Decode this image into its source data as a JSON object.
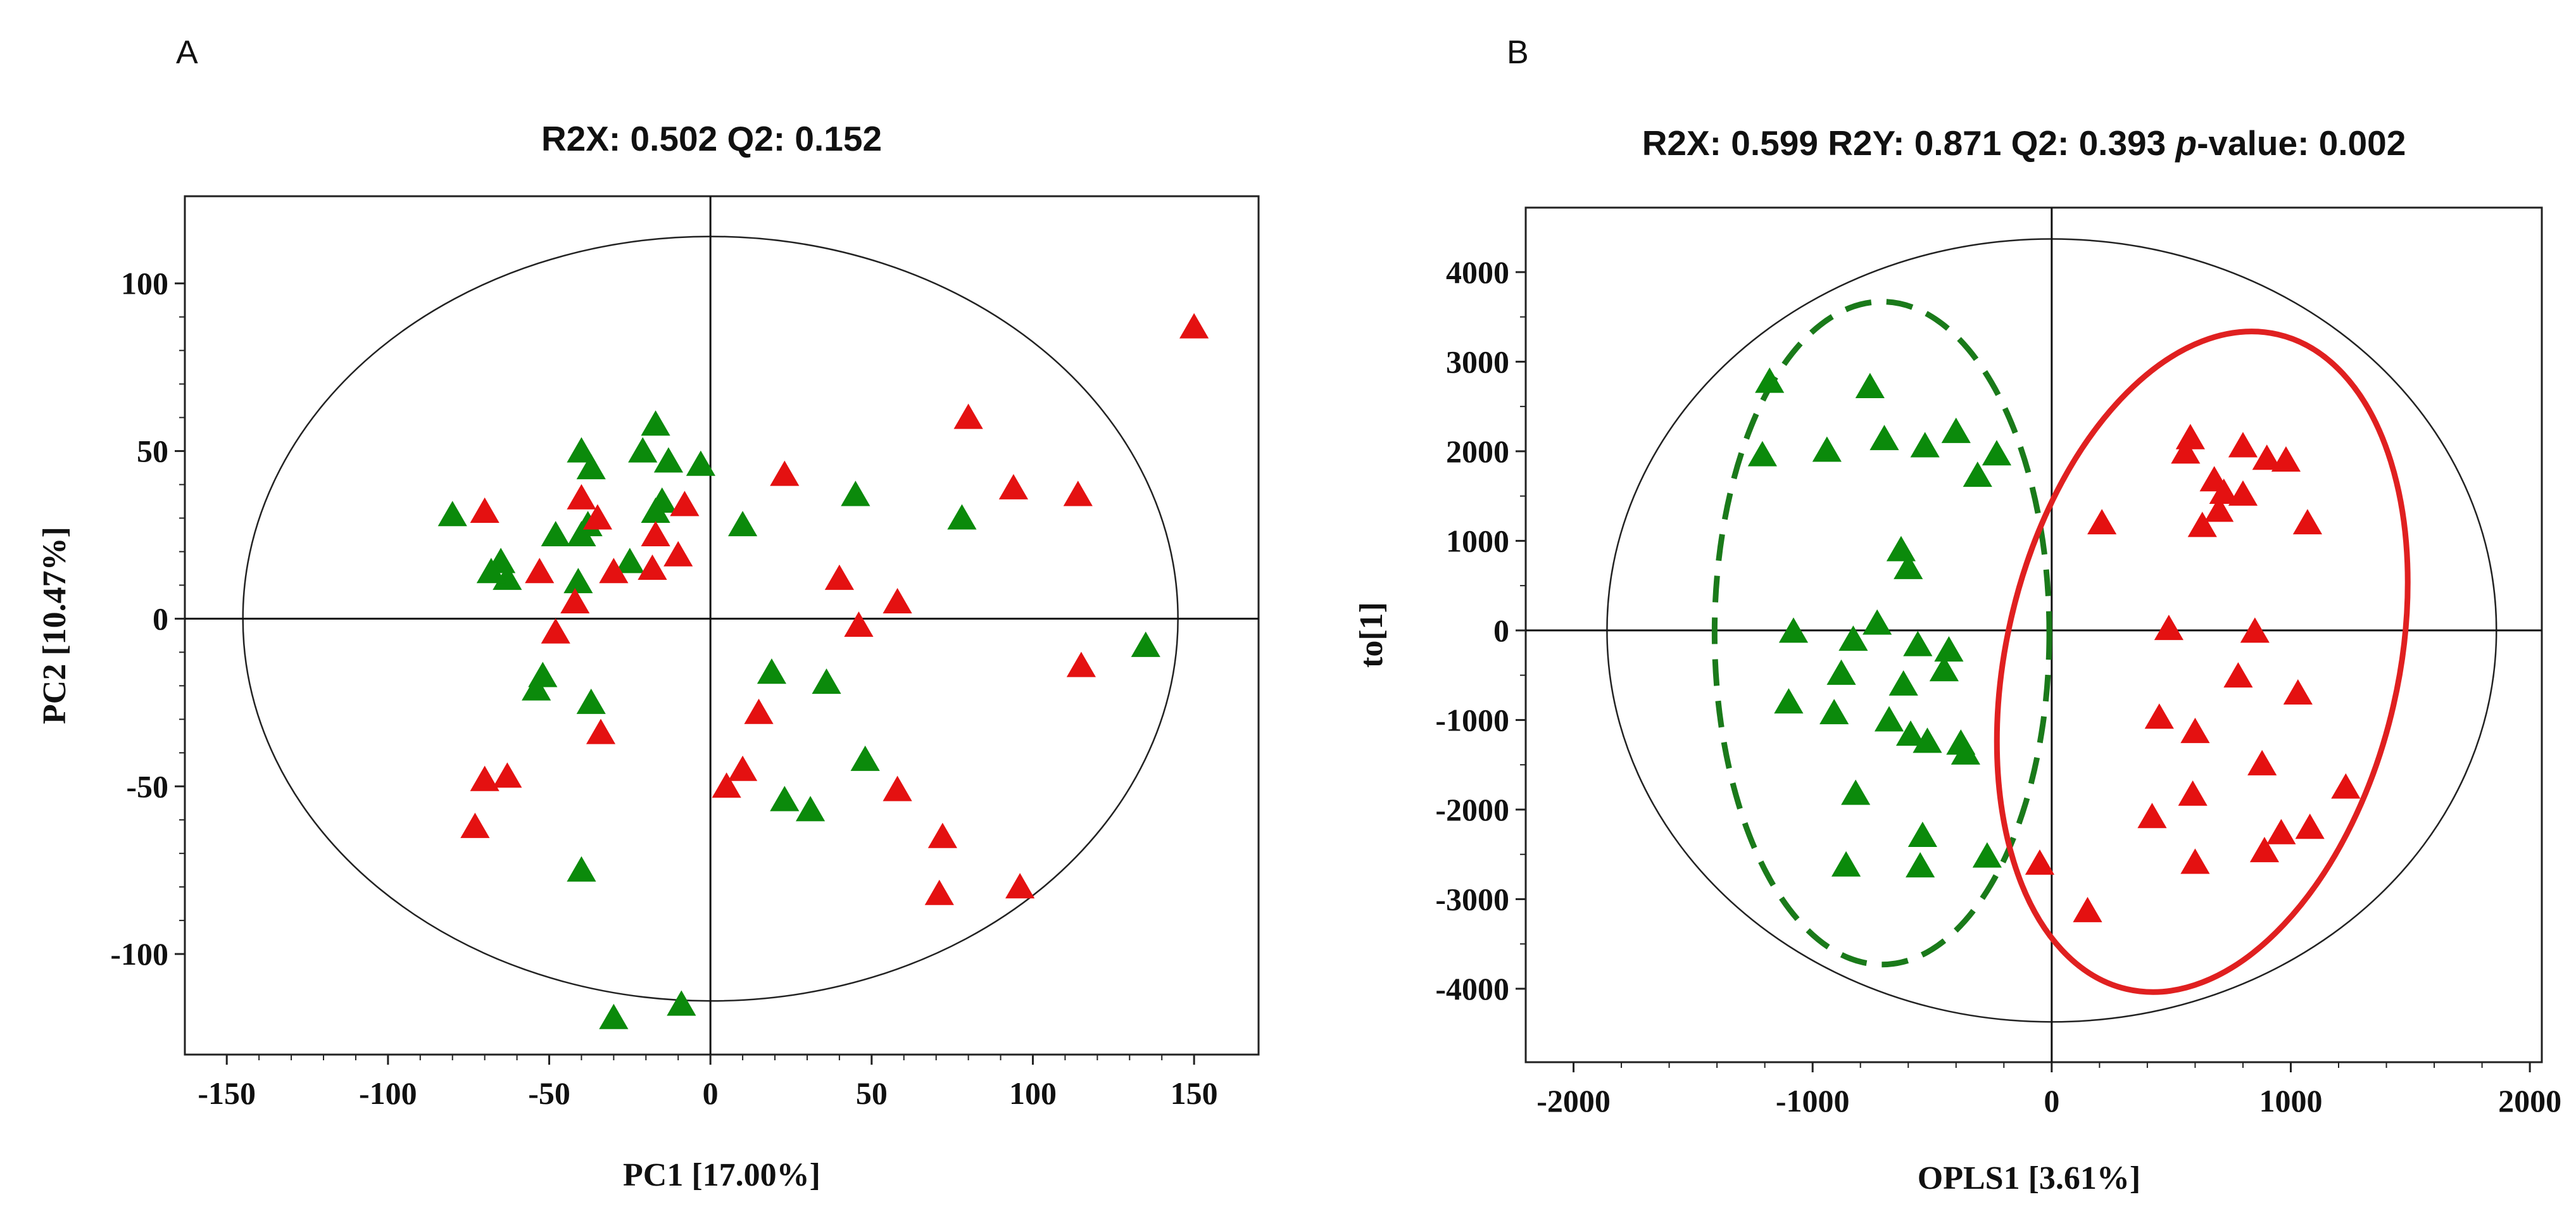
{
  "figure": {
    "panels": [
      {
        "letter": "A",
        "title": "R2X: 0.502 Q2: 0.152",
        "xlabel": "PC1 [17.00%]",
        "ylabel": "PC2 [10.47%]",
        "xlim": [
          -163,
          170
        ],
        "ylim": [
          -130,
          126
        ],
        "xticks": [
          -150,
          -100,
          -50,
          0,
          50,
          100,
          150
        ],
        "yticks": [
          -100,
          -50,
          0,
          50,
          100
        ],
        "hotelling_t2": {
          "cx": 0,
          "cy": 0,
          "rx": 145,
          "ry": 114
        }
      },
      {
        "letter": "B",
        "title_prefix": "R2X: 0.599 R2Y: 0.871 Q2: 0.393 ",
        "title_p": "p",
        "title_suffix": "-value: 0.002",
        "xlabel": "OPLS1 [3.61%]",
        "ylabel": "to[1]",
        "xlim": [
          -2200,
          2050
        ],
        "ylim": [
          -4820,
          4720
        ],
        "xticks": [
          -2000,
          -1000,
          0,
          1000,
          2000
        ],
        "yticks": [
          -4000,
          -3000,
          -2000,
          -1000,
          0,
          1000,
          2000,
          3000,
          4000
        ],
        "hotelling_t2": {
          "cx": 0,
          "cy": 0,
          "rx": 1860,
          "ry": 4370
        }
      }
    ]
  },
  "chart_data": [
    {
      "type": "scatter",
      "title": "R2X: 0.502 Q2: 0.152",
      "xlabel": "PC1 [17.00%]",
      "ylabel": "PC2 [10.47%]",
      "xlim": [
        -163,
        170
      ],
      "ylim": [
        -130,
        126
      ],
      "grid": false,
      "series": [
        {
          "name": "green group",
          "color": "#0b8a0b",
          "marker": "triangle",
          "points": [
            [
              -80,
              31
            ],
            [
              -65,
              17
            ],
            [
              -63,
              12
            ],
            [
              -68,
              14
            ],
            [
              -48,
              25
            ],
            [
              -40,
              50
            ],
            [
              -37,
              45
            ],
            [
              -38,
              28
            ],
            [
              -40,
              25
            ],
            [
              -41,
              11
            ],
            [
              -25,
              17
            ],
            [
              -21,
              50
            ],
            [
              -17,
              58
            ],
            [
              -13,
              47
            ],
            [
              -15,
              35
            ],
            [
              -17,
              32
            ],
            [
              -3,
              46
            ],
            [
              10,
              28
            ],
            [
              45,
              37
            ],
            [
              78,
              30
            ],
            [
              135,
              -8
            ],
            [
              -52,
              -17
            ],
            [
              -54,
              -21
            ],
            [
              -37,
              -25
            ],
            [
              -40,
              -75
            ],
            [
              -30,
              -119
            ],
            [
              -9,
              -115
            ],
            [
              19,
              -16
            ],
            [
              23,
              -54
            ],
            [
              31,
              -57
            ],
            [
              36,
              -19
            ],
            [
              48,
              -42
            ]
          ]
        },
        {
          "name": "red group",
          "color": "#e41111",
          "marker": "triangle",
          "points": [
            [
              -70,
              32
            ],
            [
              -53,
              14
            ],
            [
              -40,
              36
            ],
            [
              -35,
              30
            ],
            [
              -30,
              14
            ],
            [
              -17,
              25
            ],
            [
              -18,
              15
            ],
            [
              -10,
              19
            ],
            [
              -8,
              34
            ],
            [
              -42,
              5
            ],
            [
              -48,
              -4
            ],
            [
              -34,
              -34
            ],
            [
              -70,
              -48
            ],
            [
              -63,
              -47
            ],
            [
              -73,
              -62
            ],
            [
              5,
              -50
            ],
            [
              10,
              -45
            ],
            [
              15,
              -28
            ],
            [
              23,
              43
            ],
            [
              40,
              12
            ],
            [
              46,
              -2
            ],
            [
              58,
              5
            ],
            [
              58,
              -51
            ],
            [
              72,
              -65
            ],
            [
              71,
              -82
            ],
            [
              80,
              60
            ],
            [
              94,
              39
            ],
            [
              96,
              -80
            ],
            [
              114,
              37
            ],
            [
              115,
              -14
            ],
            [
              150,
              87
            ]
          ]
        }
      ]
    },
    {
      "type": "scatter",
      "title": "R2X: 0.599 R2Y: 0.871 Q2: 0.393 p-value: 0.002",
      "xlabel": "OPLS1 [3.61%]",
      "ylabel": "to[1]",
      "xlim": [
        -2200,
        2050
      ],
      "ylim": [
        -4820,
        4720
      ],
      "grid": false,
      "series": [
        {
          "name": "green group",
          "color": "#0b8a0b",
          "marker": "triangle",
          "points": [
            [
              -1180,
              2780
            ],
            [
              -760,
              2720
            ],
            [
              -1210,
              1960
            ],
            [
              -940,
              2010
            ],
            [
              -700,
              2140
            ],
            [
              -530,
              2060
            ],
            [
              -400,
              2220
            ],
            [
              -230,
              1970
            ],
            [
              -310,
              1730
            ],
            [
              -630,
              900
            ],
            [
              -600,
              700
            ],
            [
              -1080,
              -10
            ],
            [
              -730,
              80
            ],
            [
              -830,
              -100
            ],
            [
              -560,
              -160
            ],
            [
              -430,
              -220
            ],
            [
              -450,
              -440
            ],
            [
              -880,
              -480
            ],
            [
              -620,
              -600
            ],
            [
              -1100,
              -800
            ],
            [
              -910,
              -920
            ],
            [
              -680,
              -1000
            ],
            [
              -590,
              -1160
            ],
            [
              -520,
              -1240
            ],
            [
              -380,
              -1260
            ],
            [
              -360,
              -1370
            ],
            [
              -820,
              -1820
            ],
            [
              -540,
              -2290
            ],
            [
              -270,
              -2520
            ],
            [
              -860,
              -2620
            ],
            [
              -550,
              -2630
            ]
          ]
        },
        {
          "name": "red group",
          "color": "#e41111",
          "marker": "triangle",
          "points": [
            [
              580,
              2150
            ],
            [
              560,
              1990
            ],
            [
              800,
              2060
            ],
            [
              900,
              1920
            ],
            [
              980,
              1900
            ],
            [
              680,
              1680
            ],
            [
              720,
              1540
            ],
            [
              800,
              1520
            ],
            [
              700,
              1340
            ],
            [
              630,
              1170
            ],
            [
              1070,
              1200
            ],
            [
              210,
              1200
            ],
            [
              490,
              20
            ],
            [
              850,
              -10
            ],
            [
              780,
              -510
            ],
            [
              1030,
              -700
            ],
            [
              450,
              -970
            ],
            [
              600,
              -1130
            ],
            [
              880,
              -1490
            ],
            [
              1230,
              -1750
            ],
            [
              590,
              -1830
            ],
            [
              420,
              -2080
            ],
            [
              960,
              -2260
            ],
            [
              1080,
              -2200
            ],
            [
              890,
              -2460
            ],
            [
              600,
              -2590
            ],
            [
              -50,
              -2600
            ],
            [
              150,
              -3130
            ]
          ]
        }
      ],
      "group_ellipses": [
        {
          "name": "green group ellipse",
          "color": "#1a7a1a",
          "style": "dashed",
          "cx": -710,
          "cy": -30,
          "rx": 700,
          "ry": 3700,
          "rotation_deg": 0
        },
        {
          "name": "red group ellipse",
          "color": "#e02020",
          "style": "solid",
          "cx": 630,
          "cy": -350,
          "rx": 820,
          "ry": 3750,
          "rotation_deg": 13
        }
      ]
    }
  ]
}
